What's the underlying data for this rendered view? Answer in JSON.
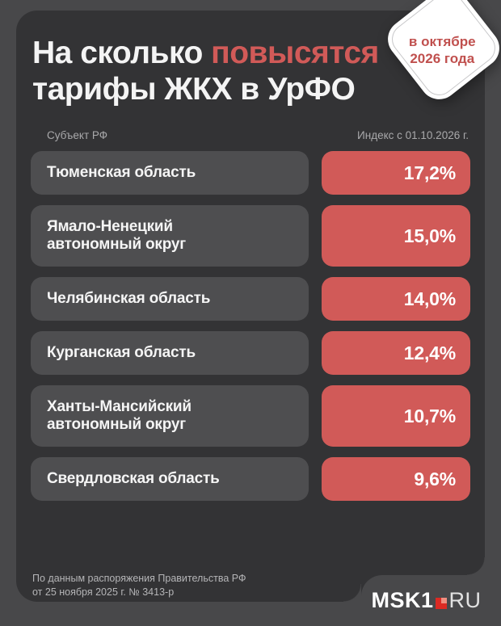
{
  "header": {
    "title_white": "На сколько ",
    "title_accent": "повысятся",
    "title_line2": "тарифы ЖКХ в УрФО",
    "badge_line1": "в октябре",
    "badge_line2": "2026 года"
  },
  "table": {
    "col_region": "Субъект РФ",
    "col_index": "Индекс с 01.10.2026 г.",
    "rows": [
      {
        "region": "Тюменская область",
        "value": "17,2%"
      },
      {
        "region": "Ямало-Ненецкий\nавтономный округ",
        "value": "15,0%"
      },
      {
        "region": "Челябинская область",
        "value": "14,0%"
      },
      {
        "region": "Курганская область",
        "value": "12,4%"
      },
      {
        "region": "Ханты-Мансийский\nавтономный округ",
        "value": "10,7%"
      },
      {
        "region": "Свердловская область",
        "value": "9,6%"
      }
    ]
  },
  "footer": {
    "source_line1": "По данным распоряжения Правительства РФ",
    "source_line2": "от 25 ноября 2025 г. № 3413-р",
    "logo_msk1": "MSK1",
    "logo_ru": "RU"
  },
  "colors": {
    "background": "#48484a",
    "panel": "#333335",
    "pill_gray": "#4e4e50",
    "accent_red": "#d15a58",
    "badge_text_red": "#c0504e",
    "logo_red": "#dc2a23"
  },
  "chart_data": {
    "type": "table",
    "title": "На сколько повысятся тарифы ЖКХ в УрФО",
    "subtitle": "в октябре 2026 года",
    "columns": [
      "Субъект РФ",
      "Индекс с 01.10.2026 г."
    ],
    "categories": [
      "Тюменская область",
      "Ямало-Ненецкий автономный округ",
      "Челябинская область",
      "Курганская область",
      "Ханты-Мансийский автономный округ",
      "Свердловская область"
    ],
    "values": [
      17.2,
      15.0,
      14.0,
      12.4,
      10.7,
      9.6
    ],
    "unit": "%",
    "source": "По данным распоряжения Правительства РФ от 25 ноября 2025 г. № 3413-р"
  }
}
